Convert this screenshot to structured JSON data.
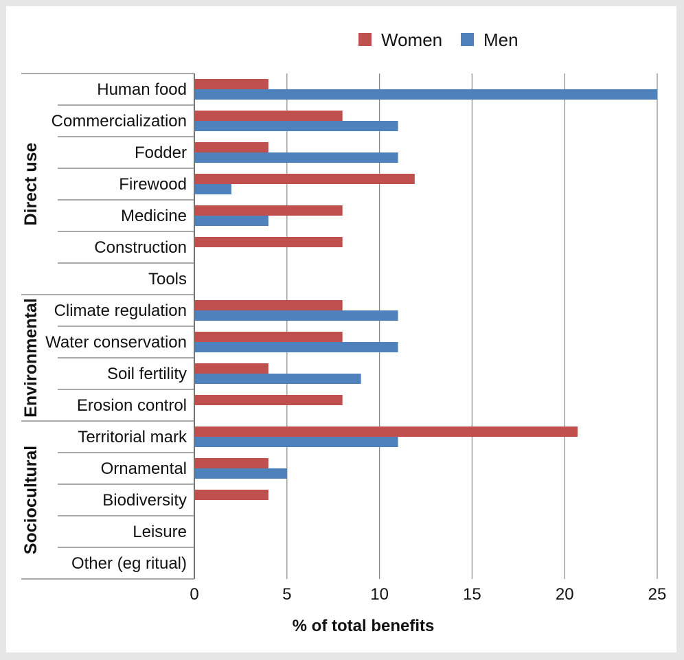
{
  "chart_data": {
    "type": "bar",
    "orientation": "horizontal",
    "categories": [
      "Human food",
      "Commercialization",
      "Fodder",
      "Firewood",
      "Medicine",
      "Construction",
      "Tools",
      "Climate regulation",
      "Water conservation",
      "Soil fertility",
      "Erosion control",
      "Territorial mark",
      "Ornamental",
      "Biodiversity",
      "Leisure",
      "Other (eg ritual)"
    ],
    "groups": [
      {
        "label": "Direct use",
        "start": 0,
        "end": 6
      },
      {
        "label": "Environmental",
        "start": 7,
        "end": 10
      },
      {
        "label": "Sociocultural",
        "start": 11,
        "end": 15
      }
    ],
    "series": [
      {
        "name": "Women",
        "color": "#c0504d",
        "values": [
          4,
          8,
          4,
          11.9,
          8,
          8,
          0,
          8,
          8,
          4,
          8,
          20.7,
          4,
          4,
          0,
          0
        ]
      },
      {
        "name": "Men",
        "color": "#4f81bd",
        "values": [
          25,
          11,
          11,
          2,
          4,
          0,
          0,
          11,
          11,
          9,
          0,
          11,
          5,
          0,
          0,
          0
        ]
      }
    ],
    "xlabel": "% of total benefits",
    "xlim": [
      0,
      25
    ],
    "xticks": [
      0,
      5,
      10,
      15,
      20,
      25
    ],
    "grid": true,
    "legend_position": "top"
  }
}
